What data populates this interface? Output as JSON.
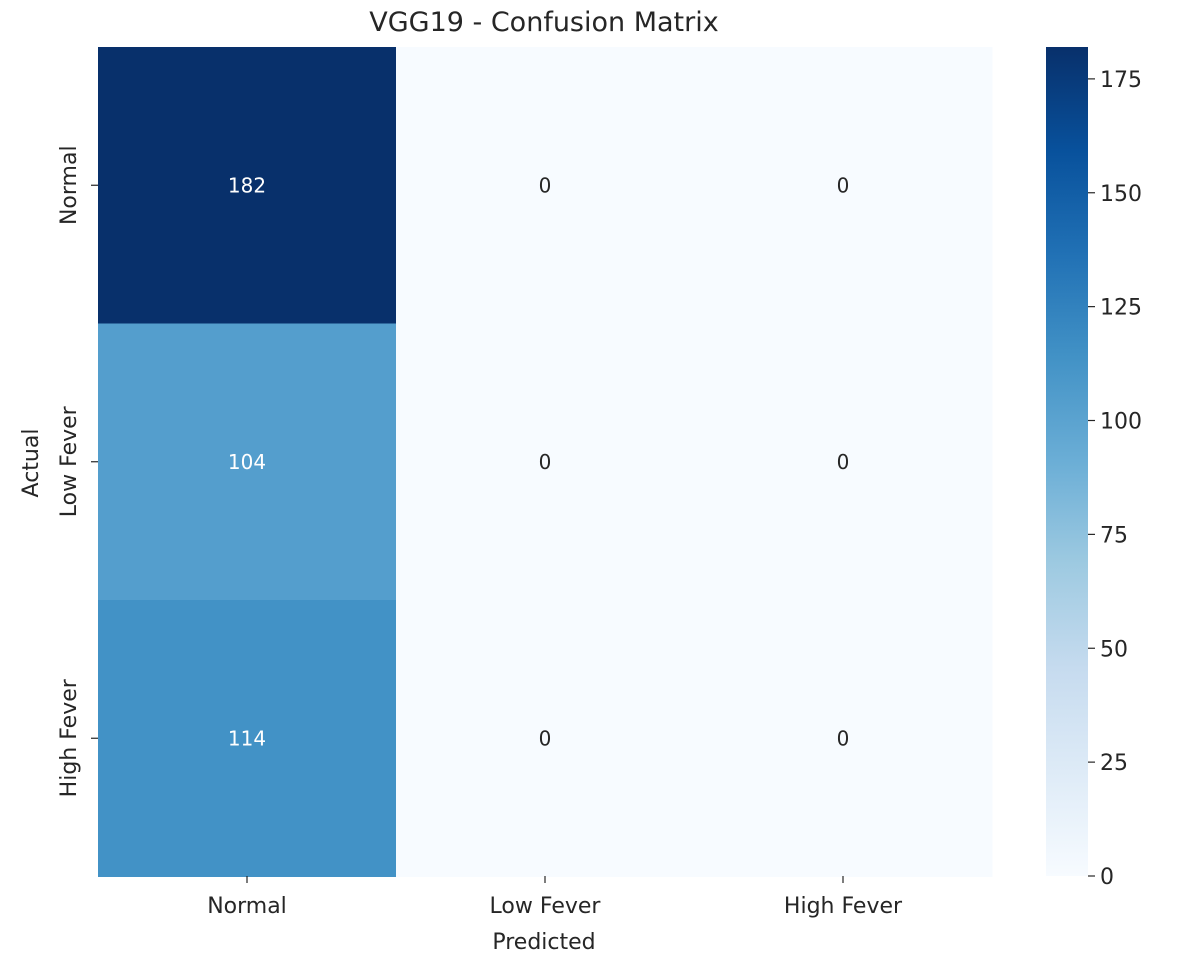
{
  "chart_data": {
    "type": "heatmap",
    "title": "VGG19 - Confusion Matrix",
    "xlabel": "Predicted",
    "ylabel": "Actual",
    "x_categories": [
      "Normal",
      "Low Fever",
      "High Fever"
    ],
    "y_categories": [
      "Normal",
      "Low Fever",
      "High Fever"
    ],
    "values": [
      [
        182,
        0,
        0
      ],
      [
        104,
        0,
        0
      ],
      [
        114,
        0,
        0
      ]
    ],
    "colorbar": {
      "min": 0,
      "max": 182,
      "ticks": [
        0,
        25,
        50,
        75,
        100,
        125,
        150,
        175
      ],
      "colormap": "Blues"
    },
    "colors": {
      "low": "#f7fbff",
      "high": "#08306b",
      "text_dark": "#262626",
      "text_light": "#ffffff"
    }
  }
}
